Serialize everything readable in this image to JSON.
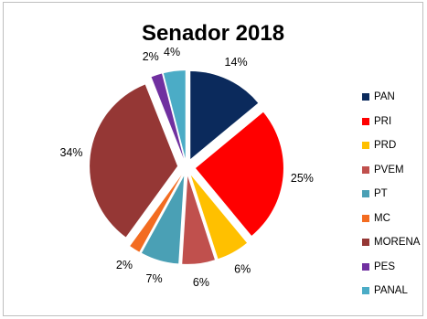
{
  "chart_data": {
    "type": "pie",
    "title": "Senador 2018",
    "categories": [
      "PAN",
      "PRI",
      "PRD",
      "PVEM",
      "PT",
      "MC",
      "MORENA",
      "PES",
      "PANAL"
    ],
    "values": [
      14,
      25,
      6,
      6,
      7,
      2,
      34,
      2,
      4
    ],
    "labels": [
      "14%",
      "25%",
      "6%",
      "6%",
      "7%",
      "2%",
      "34%",
      "2%",
      "4%"
    ],
    "colors": [
      "#0b2a5c",
      "#ff0000",
      "#ffc000",
      "#c0504d",
      "#4aa0b5",
      "#f36c21",
      "#953735",
      "#7030a0",
      "#4bacc6"
    ],
    "exploded": true,
    "legend_position": "right"
  }
}
